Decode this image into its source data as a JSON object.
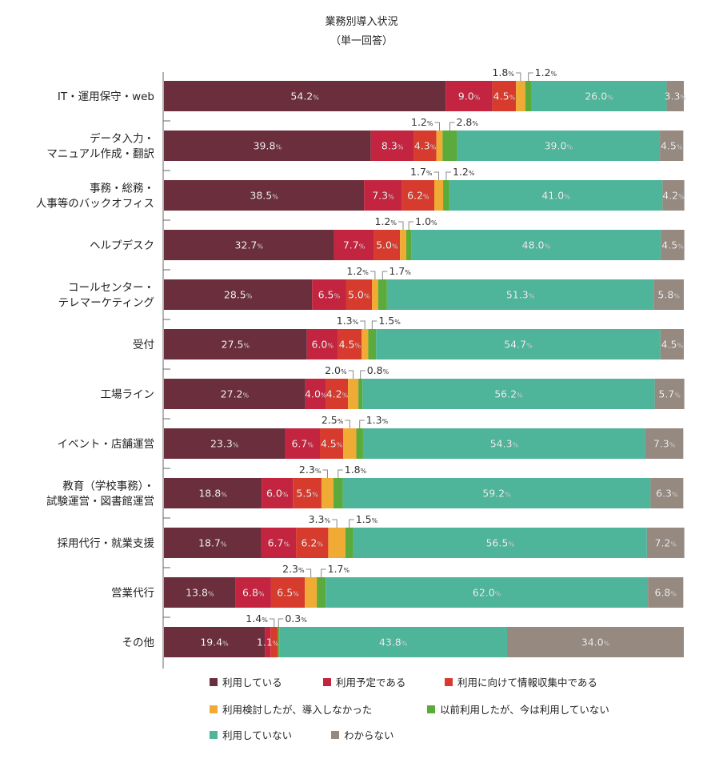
{
  "chart_data": {
    "type": "bar",
    "stacked": true,
    "orientation": "horizontal",
    "title": "業務別導入状況",
    "subtitle": "（単一回答）",
    "unit": "%",
    "xlim": [
      0,
      100
    ],
    "categories": [
      [
        "IT・運用保守・web"
      ],
      [
        "データ入力・",
        "マニュアル作成・翻訳"
      ],
      [
        "事務・総務・",
        "人事等のバックオフィス"
      ],
      [
        "ヘルプデスク"
      ],
      [
        "コールセンター・",
        "テレマーケティング"
      ],
      [
        "受付"
      ],
      [
        "工場ライン"
      ],
      [
        "イベント・店舗運営"
      ],
      [
        "教育（学校事務）・",
        "試験運営・図書館運営"
      ],
      [
        "採用代行・就業支援"
      ],
      [
        "営業代行"
      ],
      [
        "その他"
      ]
    ],
    "series": [
      {
        "name": "利用している",
        "color": "#6b2e3c",
        "values": [
          54.2,
          39.8,
          38.5,
          32.7,
          28.5,
          27.5,
          27.2,
          23.3,
          18.8,
          18.7,
          13.8,
          19.4
        ]
      },
      {
        "name": "利用予定である",
        "color": "#c3243f",
        "values": [
          9.0,
          8.3,
          7.3,
          7.7,
          6.5,
          6.0,
          4.0,
          6.7,
          6.0,
          6.7,
          6.8,
          1.1
        ]
      },
      {
        "name": "利用に向けて情報収集中である",
        "color": "#d63b2e",
        "values": [
          4.5,
          4.3,
          6.2,
          5.0,
          5.0,
          4.5,
          4.2,
          4.5,
          5.5,
          6.2,
          6.5,
          1.4
        ]
      },
      {
        "name": "利用検討したが、導入しなかった",
        "color": "#f0ab34",
        "values": [
          1.8,
          1.2,
          1.7,
          1.2,
          1.2,
          1.3,
          2.0,
          2.5,
          2.3,
          3.3,
          2.3,
          0
        ]
      },
      {
        "name": "以前利用したが、今は利用していない",
        "color": "#5aab3c",
        "values": [
          1.2,
          2.8,
          1.2,
          1.0,
          1.7,
          1.5,
          0.8,
          1.3,
          1.8,
          1.5,
          1.7,
          0.3
        ]
      },
      {
        "name": "利用していない",
        "color": "#4fb59a",
        "values": [
          26.0,
          39.0,
          41.0,
          48.0,
          51.3,
          54.7,
          56.2,
          54.3,
          59.2,
          56.5,
          62.0,
          43.8
        ]
      },
      {
        "name": "わからない",
        "color": "#958980",
        "values": [
          3.3,
          4.5,
          4.2,
          4.5,
          5.8,
          4.5,
          5.7,
          7.3,
          6.3,
          7.2,
          6.8,
          34.0
        ]
      }
    ],
    "callout_labels": [
      [
        {
          "series": 3,
          "text": "1.8%"
        },
        {
          "series": 4,
          "text": "1.2%"
        }
      ],
      [
        {
          "series": 3,
          "text": "1.2%"
        },
        {
          "series": 4,
          "text": "2.8%"
        }
      ],
      [
        {
          "series": 3,
          "text": "1.7%"
        },
        {
          "series": 4,
          "text": "1.2%"
        }
      ],
      [
        {
          "series": 3,
          "text": "1.2%"
        },
        {
          "series": 4,
          "text": "1.0%"
        }
      ],
      [
        {
          "series": 3,
          "text": "1.2%"
        },
        {
          "series": 4,
          "text": "1.7%"
        }
      ],
      [
        {
          "series": 3,
          "text": "1.3%"
        },
        {
          "series": 4,
          "text": "1.5%"
        }
      ],
      [
        {
          "series": 3,
          "text": "2.0%"
        },
        {
          "series": 4,
          "text": "0.8%"
        }
      ],
      [
        {
          "series": 3,
          "text": "2.5%"
        },
        {
          "series": 4,
          "text": "1.3%"
        }
      ],
      [
        {
          "series": 3,
          "text": "2.3%"
        },
        {
          "series": 4,
          "text": "1.8%"
        }
      ],
      [
        {
          "series": 3,
          "text": "3.3%"
        },
        {
          "series": 4,
          "text": "1.5%"
        }
      ],
      [
        {
          "series": 3,
          "text": "2.3%"
        },
        {
          "series": 4,
          "text": "1.7%"
        }
      ],
      [
        {
          "series": 2,
          "text": "1.4%"
        },
        {
          "series": 4,
          "text": "0.3%"
        }
      ]
    ],
    "legend_position": "bottom",
    "grid": false
  }
}
